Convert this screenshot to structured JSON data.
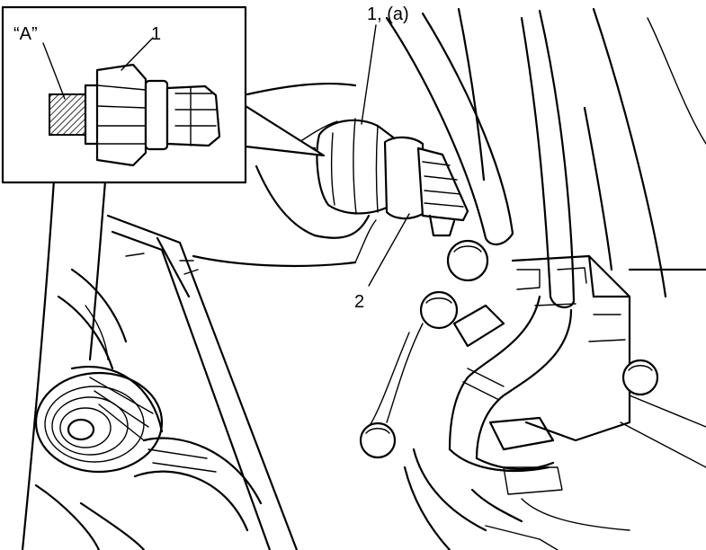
{
  "labels": {
    "inset_hatch": "“A”",
    "inset_part": "1",
    "part_main": "1, (a)",
    "part_connector": "2"
  }
}
